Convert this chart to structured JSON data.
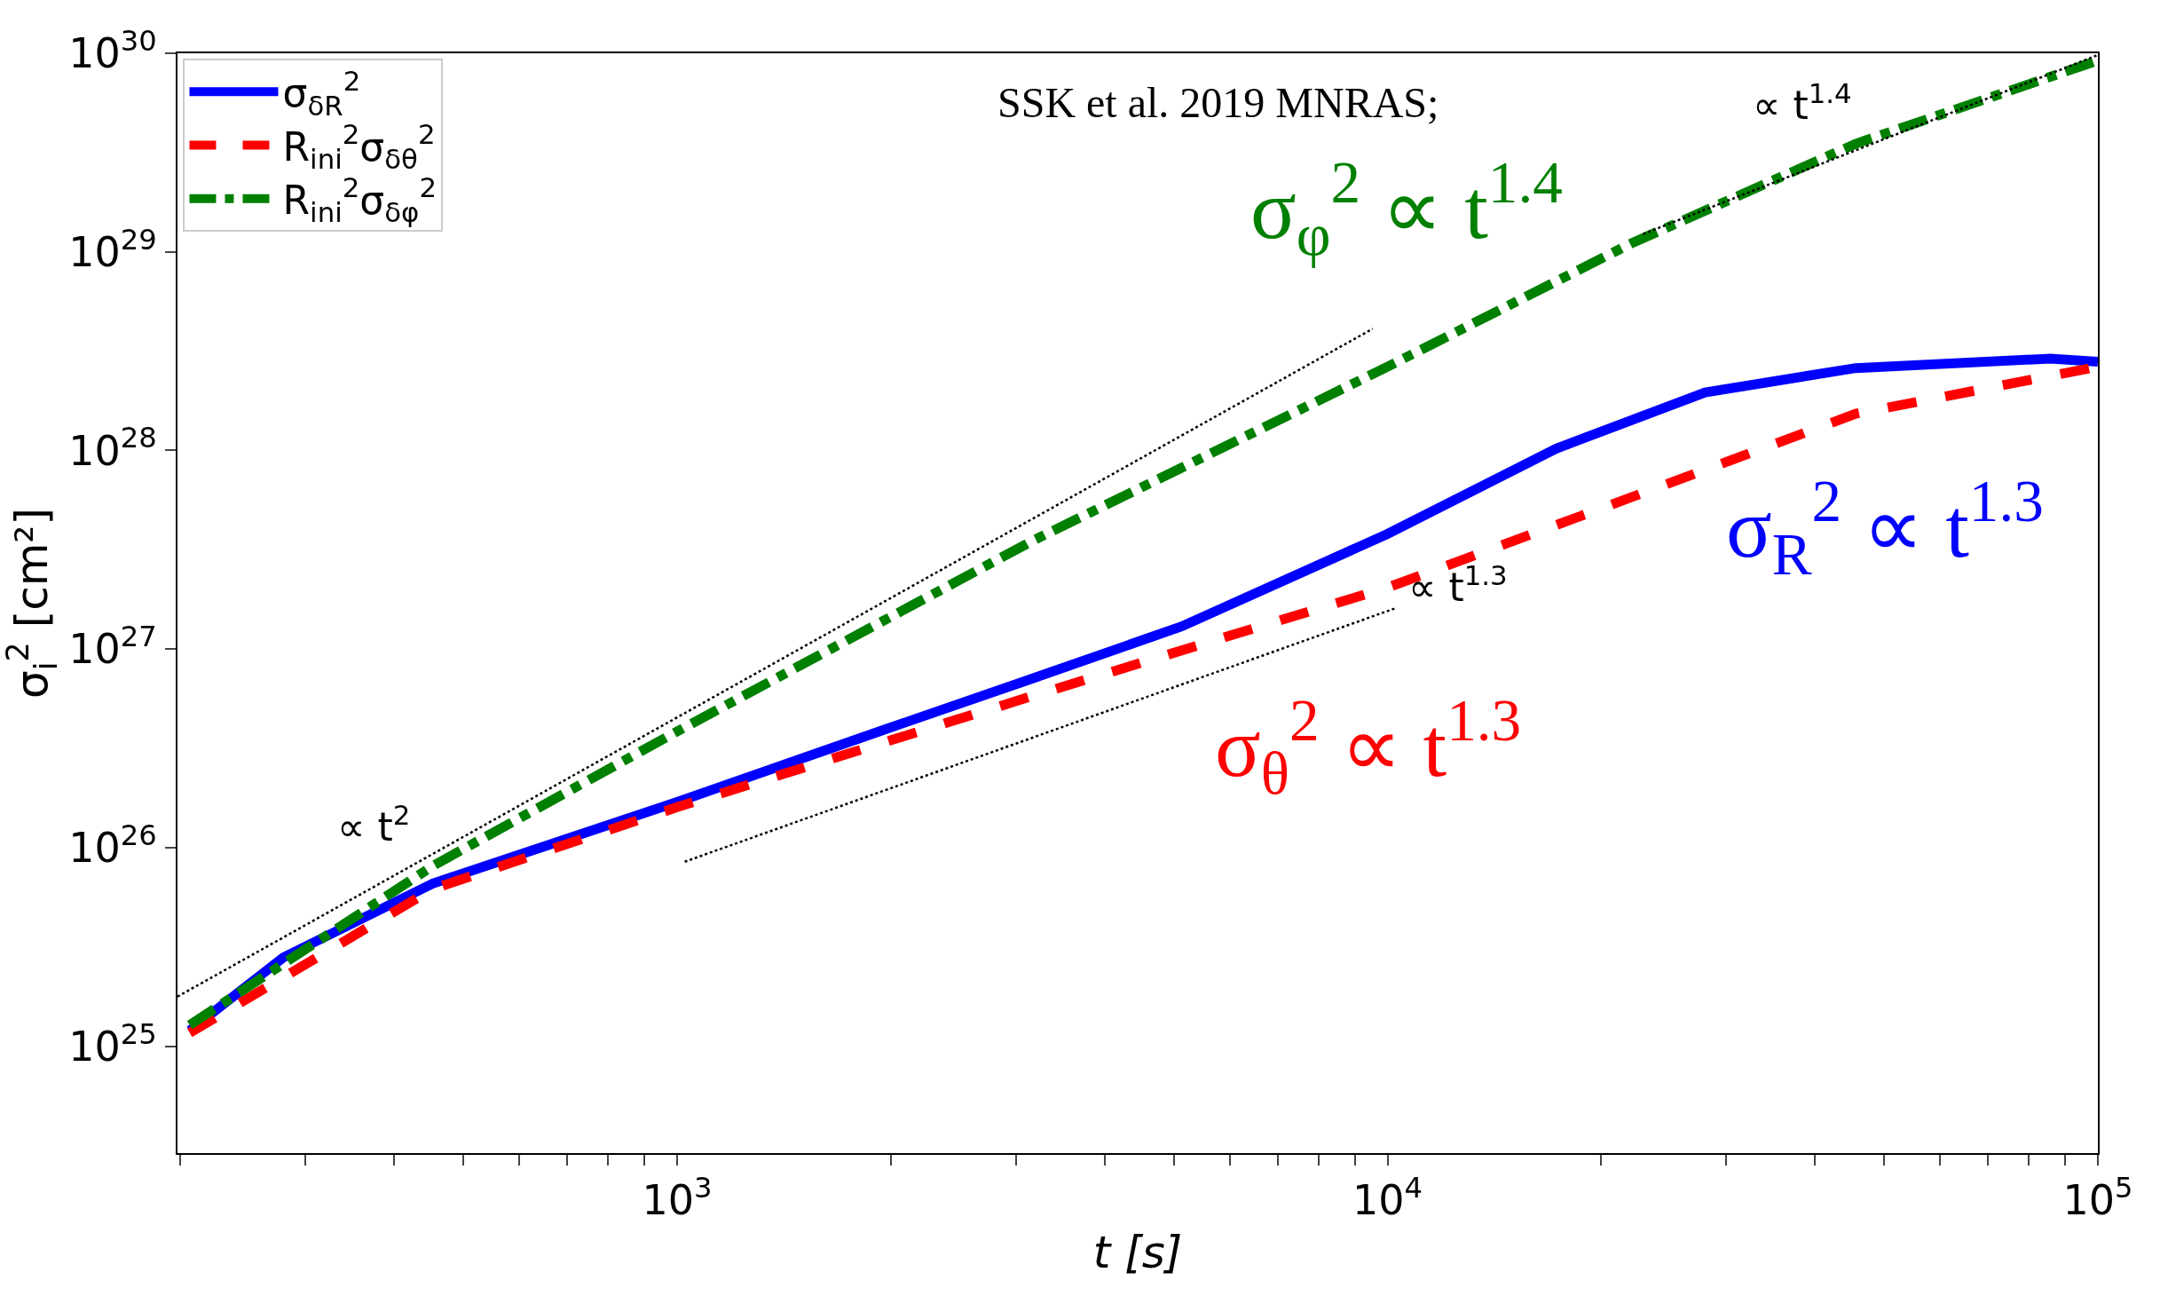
{
  "chart_data": {
    "type": "line",
    "xlabel": "t [s]",
    "ylabel": "σ$_{i}$$^{2}$ [cm²]",
    "log": "xy",
    "legend": "top left",
    "marker": "none",
    "xlim": [
      198,
      100000
    ],
    "ylim": [
      2.9e+24,
      1e+30
    ],
    "xticks": [
      {
        "value": 200,
        "label": null
      },
      {
        "value": 300,
        "label": null
      },
      {
        "value": 400,
        "label": null
      },
      {
        "value": 500,
        "label": null
      },
      {
        "value": 600,
        "label": null
      },
      {
        "value": 700,
        "label": null
      },
      {
        "value": 800,
        "label": null
      },
      {
        "value": 900,
        "label": null
      },
      {
        "value": 1000,
        "label": "10$^{3}$"
      },
      {
        "value": 2000,
        "label": null
      },
      {
        "value": 3000,
        "label": null
      },
      {
        "value": 4000,
        "label": null
      },
      {
        "value": 5000,
        "label": null
      },
      {
        "value": 6000,
        "label": null
      },
      {
        "value": 7000,
        "label": null
      },
      {
        "value": 8000,
        "label": null
      },
      {
        "value": 9000,
        "label": null
      },
      {
        "value": 10000,
        "label": "10$^{4}$"
      },
      {
        "value": 20000,
        "label": null
      },
      {
        "value": 30000,
        "label": null
      },
      {
        "value": 40000,
        "label": null
      },
      {
        "value": 50000,
        "label": null
      },
      {
        "value": 60000,
        "label": null
      },
      {
        "value": 70000,
        "label": null
      },
      {
        "value": 80000,
        "label": null
      },
      {
        "value": 90000,
        "label": null
      },
      {
        "value": 100000,
        "label": "10$^{5}$"
      }
    ],
    "yticks": [
      {
        "value": 1e+25,
        "label": "10$^{25}$"
      },
      {
        "value": 1e+26,
        "label": "10$^{26}$"
      },
      {
        "value": 1e+27,
        "label": "10$^{27}$"
      },
      {
        "value": 1e+28,
        "label": "10$^{28}$"
      },
      {
        "value": 1e+29,
        "label": "10$^{29}$"
      },
      {
        "value": 1e+30,
        "label": "10$^{30}$"
      }
    ],
    "series": [
      {
        "name": "σ$_{δR}$$^{2}$",
        "color": "#0000ff",
        "line_style": "solid",
        "x": [
          206,
          279,
          453,
          1000,
          1945,
          3160,
          5130,
          10000,
          17260,
          28000,
          45600,
          85700,
          100000
        ],
        "values": [
          1.2e+25,
          2.8e+25,
          6.6e+25,
          1.7e+26,
          3.9e+26,
          7.1e+26,
          1.3e+27,
          3.8e+27,
          1.02e+28,
          1.96e+28,
          2.6e+28,
          2.9e+28,
          2.8e+28
        ]
      },
      {
        "name": "R$_{ini}$$^{2}$σ$_{δθ}$$^{2}$",
        "color": "#ff0000",
        "line_style": "dashed",
        "x": [
          206,
          453,
          1000,
          3160,
          10000,
          22000,
          45600,
          100000
        ],
        "values": [
          1.17e+25,
          6.2e+25,
          1.6e+26,
          5.8e+26,
          2.04e+27,
          5.8e+27,
          1.53e+28,
          2.64e+28
        ]
      },
      {
        "name": "R$_{ini}$$^{2}$σ$_{δφ}$$^{2}$",
        "color": "#008000",
        "line_style": "dashdot",
        "x": [
          206,
          453,
          1000,
          3160,
          10000,
          22000,
          45600,
          100000
        ],
        "values": [
          1.28e+25,
          8.1e+25,
          3.85e+26,
          3.5e+27,
          2.64e+28,
          1.1e+29,
          3.5e+29,
          9.2e+29
        ]
      },
      {
        "color": "#000000",
        "line_style": "dotted",
        "x": [
          198,
          9530
        ],
        "values": [
          1.78e+25,
          4.1e+28
        ]
      },
      {
        "color": "#000000",
        "line_style": "dotted",
        "x": [
          1025,
          10230
        ],
        "values": [
          8.5e+25,
          1.6e+27
        ]
      },
      {
        "color": "#000000",
        "line_style": "dotted",
        "x": [
          22900,
          100000
        ],
        "values": [
          1.23e+29,
          9.8e+29
        ]
      }
    ],
    "annotations": [
      "SSK et al. 2019 MNRAS;",
      "∝ t$^{2}$",
      "∝ t$^{1.3}$",
      "∝ t$^{1.4}$",
      "σ$_{φ}$$^{2}$ ∝ t$^{1.4}$",
      "σ$_{R}$$^{2}$ ∝ t$^{1.3}$",
      "σ$_{θ}$$^{2}$ ∝ t$^{1.3}$"
    ]
  }
}
